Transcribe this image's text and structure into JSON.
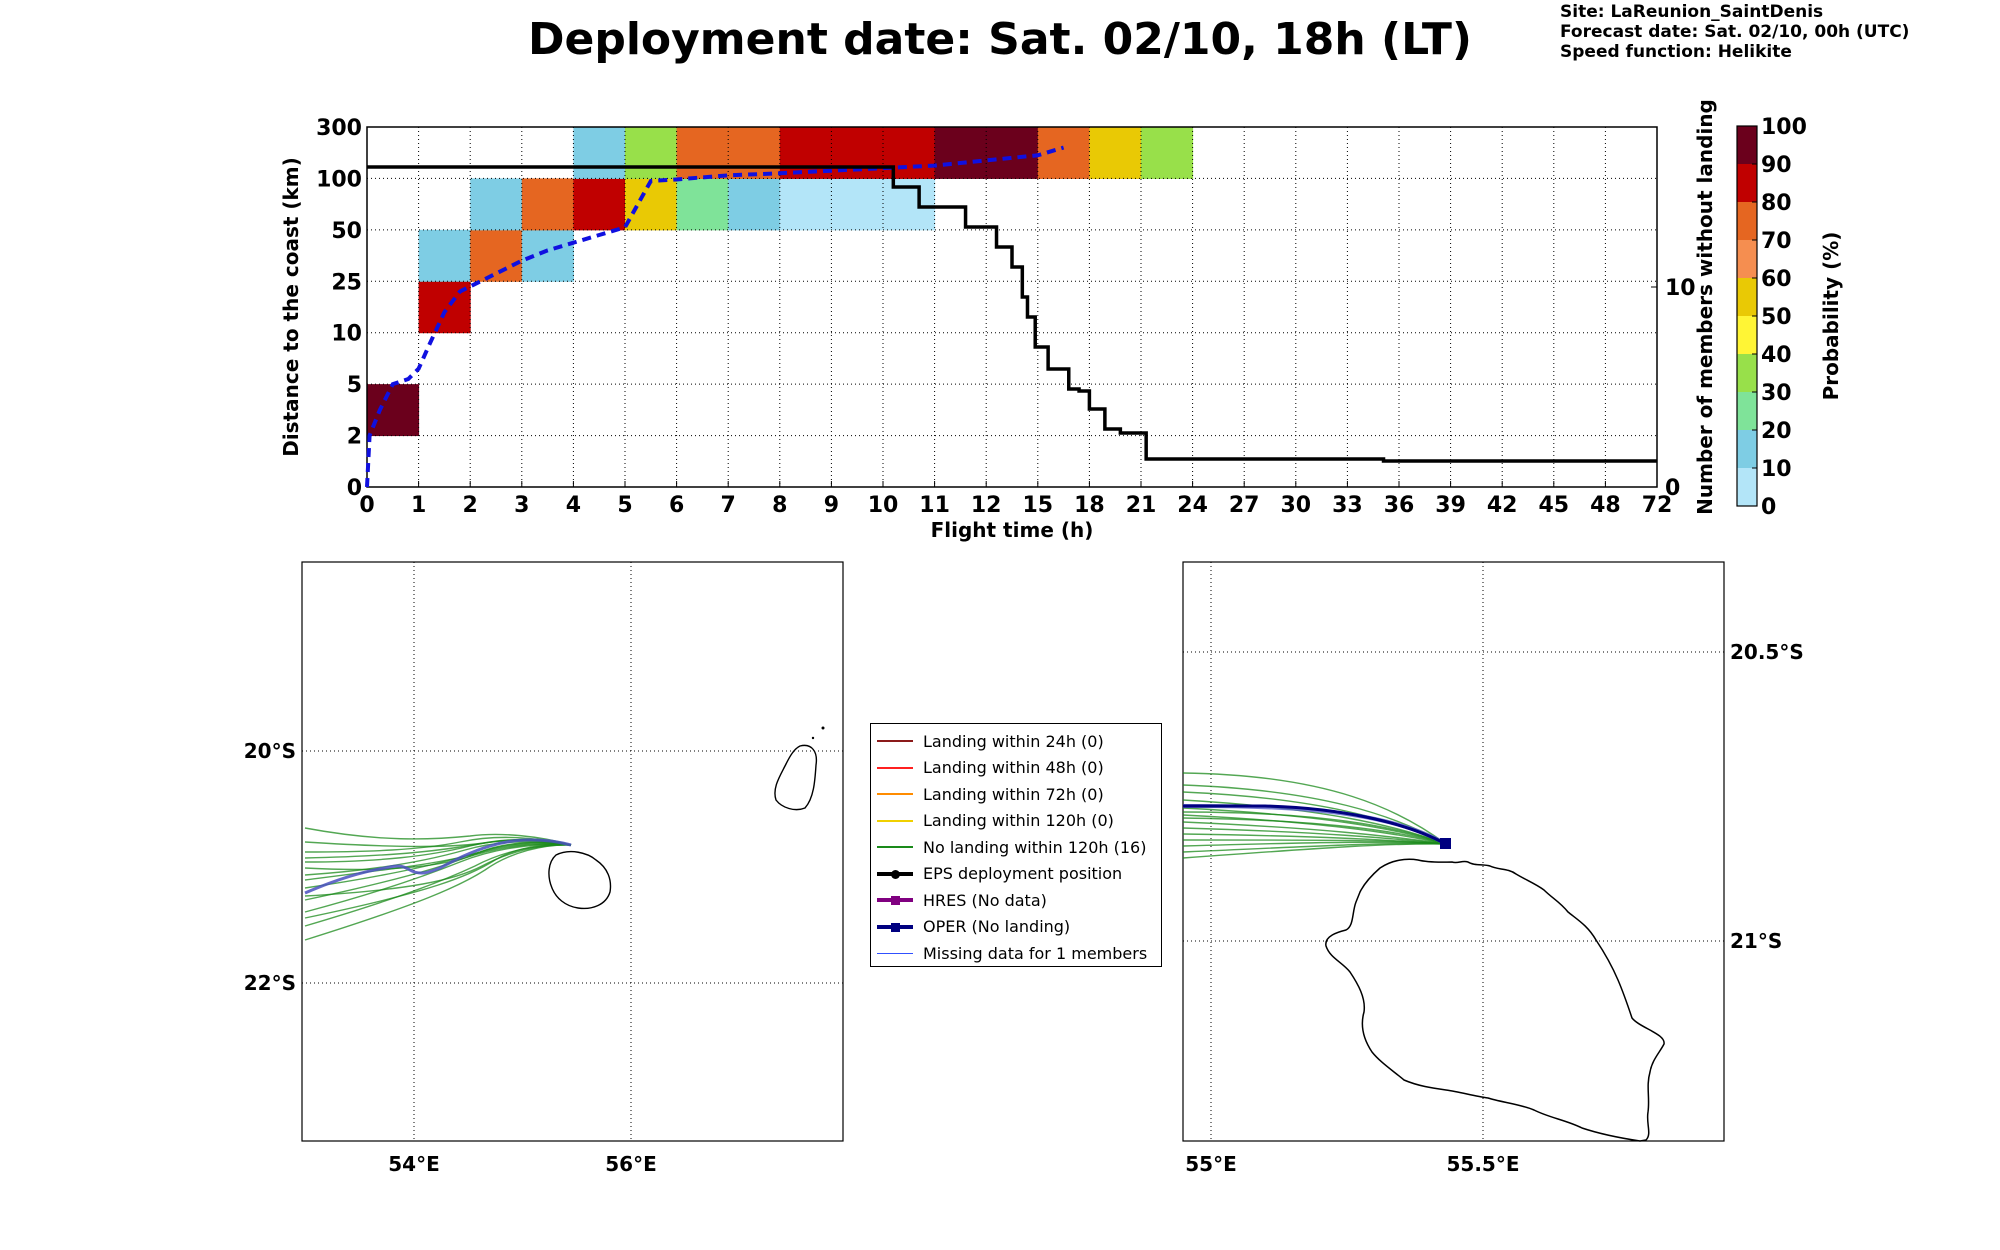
{
  "title": "Deployment date: Sat. 02/10, 18h (LT)",
  "site_info": {
    "site": "Site: LaReunion_SaintDenis",
    "forecast": "Forecast date: Sat. 02/10, 00h (UTC)",
    "speed": "Speed function: Helikite"
  },
  "chart_data": [
    {
      "type": "heatmap",
      "xlabel": "Flight time (h)",
      "ylabel": "Distance to the coast (km)",
      "y2label": "Number of members without landing",
      "colorbar_label": "Probability (%)",
      "x_ticks": [
        "0",
        "1",
        "2",
        "3",
        "4",
        "5",
        "6",
        "7",
        "8",
        "9",
        "10",
        "11",
        "12",
        "15",
        "18",
        "21",
        "24",
        "27",
        "30",
        "33",
        "36",
        "39",
        "42",
        "45",
        "48",
        "72"
      ],
      "y_ticks": [
        "0",
        "2",
        "5",
        "10",
        "25",
        "50",
        "100",
        "300"
      ],
      "y2_ticks": [
        "0",
        "10"
      ],
      "y2lim": [
        0,
        18
      ],
      "colorbar_ticks": [
        "0",
        "10",
        "20",
        "30",
        "40",
        "50",
        "60",
        "70",
        "80",
        "90",
        "100"
      ],
      "colorbar_colors": [
        "#b3e5f8",
        "#7ecde4",
        "#7fe399",
        "#98e04a",
        "#fff535",
        "#e9c905",
        "#f58e50",
        "#e56621",
        "#c00000",
        "#6b001c"
      ],
      "cells": [
        {
          "x": 0,
          "y": 1,
          "p": 95
        },
        {
          "x": 1,
          "y": 3,
          "p": 85
        },
        {
          "x": 1,
          "y": 4,
          "p": 15
        },
        {
          "x": 2,
          "y": 4,
          "p": 75
        },
        {
          "x": 2,
          "y": 5,
          "p": 15
        },
        {
          "x": 3,
          "y": 4,
          "p": 15
        },
        {
          "x": 3,
          "y": 5,
          "p": 75
        },
        {
          "x": 4,
          "y": 5,
          "p": 85
        },
        {
          "x": 4,
          "y": 6,
          "p": 15
        },
        {
          "x": 5,
          "y": 5,
          "p": 55
        },
        {
          "x": 5,
          "y": 6,
          "p": 35
        },
        {
          "x": 6,
          "y": 5,
          "p": 25
        },
        {
          "x": 6,
          "y": 6,
          "p": 75
        },
        {
          "x": 7,
          "y": 5,
          "p": 15
        },
        {
          "x": 7,
          "y": 6,
          "p": 75
        },
        {
          "x": 8,
          "y": 5,
          "p": 5
        },
        {
          "x": 8,
          "y": 6,
          "p": 85
        },
        {
          "x": 9,
          "y": 5,
          "p": 5
        },
        {
          "x": 9,
          "y": 6,
          "p": 85
        },
        {
          "x": 10,
          "y": 5,
          "p": 5
        },
        {
          "x": 10,
          "y": 6,
          "p": 85
        },
        {
          "x": 11,
          "y": 6,
          "p": 95
        },
        {
          "x": 12,
          "y": 6,
          "p": 95
        },
        {
          "x": 13,
          "y": 6,
          "p": 75
        },
        {
          "x": 14,
          "y": 6,
          "p": 55
        },
        {
          "x": 15,
          "y": 6,
          "p": 35
        }
      ],
      "median_distance_series": [
        [
          0,
          0.0
        ],
        [
          0.05,
          1.0
        ],
        [
          0.25,
          1.5
        ],
        [
          0.5,
          2.0
        ],
        [
          0.8,
          2.1
        ],
        [
          1.0,
          2.3
        ],
        [
          1.2,
          2.75
        ],
        [
          1.5,
          3.4
        ],
        [
          1.8,
          3.8
        ],
        [
          2.2,
          4.0
        ],
        [
          2.5,
          4.15
        ],
        [
          3.0,
          4.4
        ],
        [
          3.5,
          4.6
        ],
        [
          4.0,
          4.75
        ],
        [
          4.5,
          4.9
        ],
        [
          5.0,
          5.05
        ],
        [
          5.5,
          5.95
        ],
        [
          6.0,
          5.98
        ],
        [
          7.0,
          6.06
        ],
        [
          8.0,
          6.1
        ],
        [
          9.0,
          6.15
        ],
        [
          10.0,
          6.2
        ],
        [
          11.0,
          6.25
        ],
        [
          12.0,
          6.35
        ],
        [
          13.0,
          6.45
        ],
        [
          13.5,
          6.6
        ]
      ],
      "members_without_landing_series": [
        [
          0,
          16
        ],
        [
          10.2,
          16
        ],
        [
          10.2,
          15
        ],
        [
          10.7,
          15
        ],
        [
          10.7,
          14
        ],
        [
          11.6,
          14
        ],
        [
          11.6,
          13
        ],
        [
          12.2,
          13
        ],
        [
          12.2,
          12
        ],
        [
          12.5,
          12
        ],
        [
          12.5,
          11
        ],
        [
          12.7,
          11
        ],
        [
          12.7,
          9.5
        ],
        [
          12.8,
          9.5
        ],
        [
          12.8,
          8.5
        ],
        [
          12.95,
          8.5
        ],
        [
          12.95,
          7
        ],
        [
          13.2,
          7
        ],
        [
          13.2,
          5.9
        ],
        [
          13.6,
          5.9
        ],
        [
          13.6,
          4.9
        ],
        [
          13.8,
          4.9
        ],
        [
          13.8,
          4.8
        ],
        [
          14.0,
          4.8
        ],
        [
          14.0,
          3.9
        ],
        [
          14.3,
          3.9
        ],
        [
          14.3,
          2.9
        ],
        [
          14.6,
          2.9
        ],
        [
          14.6,
          2.7
        ],
        [
          15.1,
          2.7
        ],
        [
          15.1,
          1.4
        ],
        [
          19.7,
          1.4
        ],
        [
          19.7,
          1.3
        ],
        [
          20.0,
          1.3
        ],
        [
          21.0,
          1.3
        ],
        [
          25,
          1.3
        ]
      ]
    },
    {
      "type": "map",
      "lon_ticks": [
        "54°E",
        "56°E"
      ],
      "lat_ticks": [
        "20°S",
        "22°S"
      ]
    },
    {
      "type": "map",
      "lon_ticks": [
        "55°E",
        "55.5°E"
      ],
      "lat_ticks": [
        "20.5°S",
        "21°S"
      ]
    }
  ],
  "legend": [
    {
      "label": "Landing within 24h (0)",
      "color": "#8b1a1a",
      "kind": "line"
    },
    {
      "label": "Landing within 48h (0)",
      "color": "#ff2020",
      "kind": "line"
    },
    {
      "label": "Landing within 72h (0)",
      "color": "#ff8c00",
      "kind": "line"
    },
    {
      "label": "Landing within 120h (0)",
      "color": "#f0d000",
      "kind": "line"
    },
    {
      "label": "No landing within 120h (16)",
      "color": "#1a8a1a",
      "kind": "line"
    },
    {
      "label": "EPS deployment position",
      "color": "#000000",
      "kind": "dot"
    },
    {
      "label": "HRES (No data)",
      "color": "#800080",
      "kind": "square"
    },
    {
      "label": "OPER (No landing)",
      "color": "#000080",
      "kind": "square"
    },
    {
      "label": "Missing data for 1 members",
      "color": "#3050ff",
      "kind": "thin"
    }
  ]
}
